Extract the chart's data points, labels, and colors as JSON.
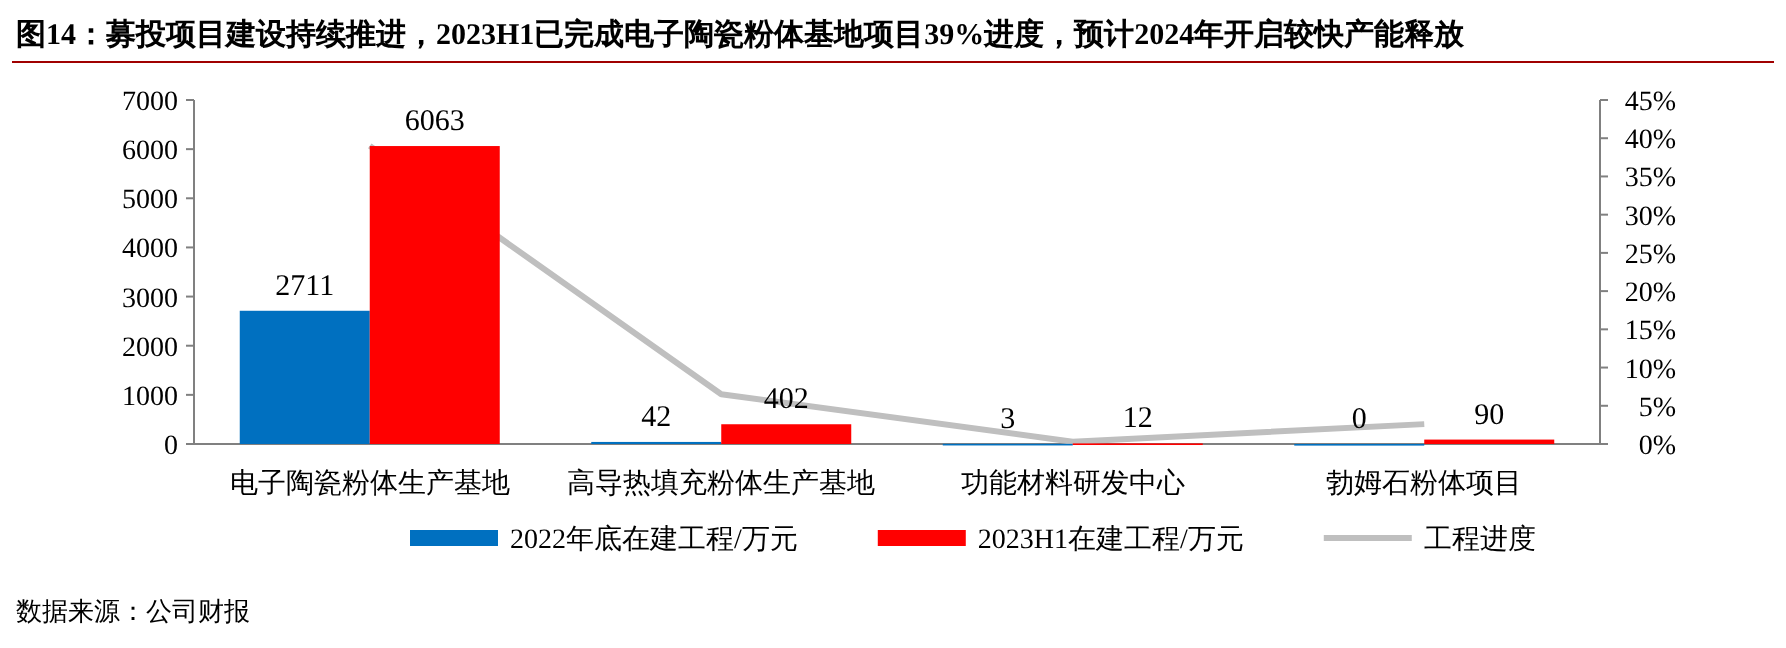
{
  "chart_data": {
    "type": "bar",
    "title": "图14：募投项目建设持续推进，2023H1已完成电子陶瓷粉体基地项目39%进度，预计2024年开启较快产能释放",
    "categories": [
      "电子陶瓷粉体生产基地",
      "高导热填充粉体生产基地",
      "功能材料研发中心",
      "勃姆石粉体项目"
    ],
    "series": [
      {
        "name": "2022年底在建工程/万元",
        "color": "#0070c0",
        "values": [
          2711,
          42,
          3,
          0
        ],
        "value_labels": [
          "2711",
          "42",
          "3",
          "0"
        ]
      },
      {
        "name": "2023H1在建工程/万元",
        "color": "#ff0000",
        "values": [
          6063,
          402,
          12,
          90
        ],
        "value_labels": [
          "6063",
          "402",
          "12",
          "90"
        ]
      },
      {
        "name": "工程进度",
        "type": "line",
        "axis": "y2",
        "color": "#bfbfbf",
        "values": [
          39,
          6.5,
          0.3,
          2.6
        ]
      }
    ],
    "ylim": [
      0,
      7000
    ],
    "yticks": [
      0,
      1000,
      2000,
      3000,
      4000,
      5000,
      6000,
      7000
    ],
    "y2lim": [
      0,
      45
    ],
    "y2ticks": [
      {
        "value": 0,
        "label": "0%"
      },
      {
        "value": 5,
        "label": "5%"
      },
      {
        "value": 10,
        "label": "10%"
      },
      {
        "value": 15,
        "label": "15%"
      },
      {
        "value": 20,
        "label": "20%"
      },
      {
        "value": 25,
        "label": "25%"
      },
      {
        "value": 30,
        "label": "30%"
      },
      {
        "value": 35,
        "label": "35%"
      },
      {
        "value": 40,
        "label": "40%"
      },
      {
        "value": 45,
        "label": "45%"
      }
    ],
    "legend": "bottom",
    "grid": false,
    "marker": "none",
    "line_style": "solid",
    "annotations": [
      "数据来源：公司财报"
    ]
  }
}
